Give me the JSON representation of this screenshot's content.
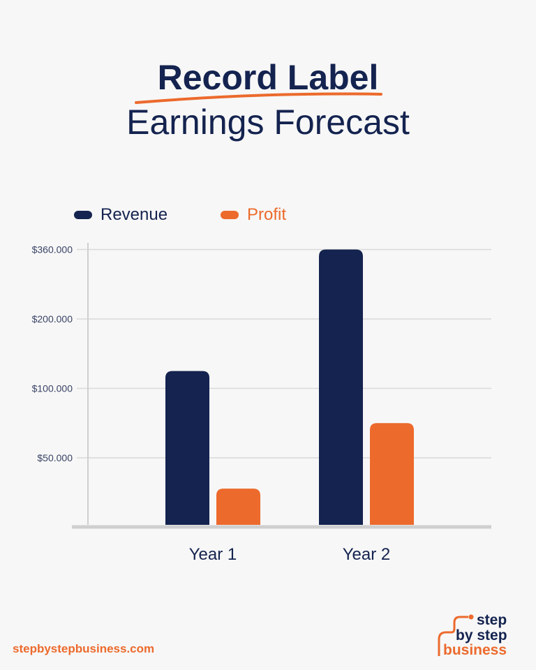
{
  "title": {
    "line1": "Record Label",
    "line2": "Earnings Forecast"
  },
  "colors": {
    "revenue": "#14234f",
    "profit": "#ec6a2c",
    "grid": "#d9d9d9",
    "axis": "#cfcfcf",
    "tick_text": "#3a4466"
  },
  "chart_data": {
    "type": "bar",
    "categories": [
      "Year 1",
      "Year 2"
    ],
    "series": [
      {
        "name": "Revenue",
        "values": [
          125000,
          360000
        ]
      },
      {
        "name": "Profit",
        "values": [
          27000,
          75000
        ]
      }
    ],
    "y_ticks": [
      50000,
      100000,
      200000,
      360000
    ],
    "y_tick_labels": [
      "$50.000",
      "$100.000",
      "$200.000",
      "$360.000"
    ],
    "y_scale": "non-uniform (ticks evenly spaced)",
    "grid": true,
    "legend": "top-left"
  },
  "footer": {
    "website": "stepbystepbusiness.com"
  },
  "logo": {
    "line1": "step",
    "line2": "by step",
    "line3": "business"
  }
}
